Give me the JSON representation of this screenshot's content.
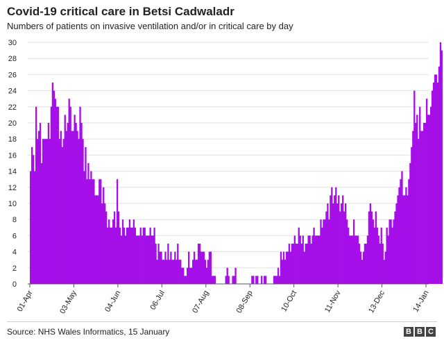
{
  "chart_data": {
    "type": "bar",
    "title": "Covid-19 critical care in Betsi Cadwaladr",
    "subtitle": "Numbers of patients on invasive ventilation and/or in critical care by day",
    "start_date": "2020-04-01",
    "end_date": "2021-01-14",
    "x_tick_labels": [
      "01-Apr",
      "03-May",
      "04-Jun",
      "06-Jul",
      "07-Aug",
      "08-Sep",
      "10-Oct",
      "11-Nov",
      "13-Dec",
      "14-Jan"
    ],
    "y_tick_labels": [
      "0",
      "2",
      "4",
      "6",
      "8",
      "10",
      "12",
      "14",
      "16",
      "18",
      "20",
      "22",
      "24",
      "26",
      "28",
      "30"
    ],
    "ylim": [
      0,
      30
    ],
    "bar_color": "#a50fe8",
    "grid": true,
    "values": [
      14,
      17,
      16,
      14,
      22,
      18,
      19,
      20,
      15,
      18,
      18,
      18,
      18,
      20,
      18,
      22,
      25,
      24,
      23,
      22,
      22,
      18,
      19,
      17,
      18,
      21,
      19,
      20,
      23,
      22,
      19,
      19,
      21,
      20,
      19,
      18,
      22,
      20,
      18,
      14,
      17,
      13,
      15,
      13,
      14,
      13,
      13,
      11,
      11,
      11,
      13,
      13,
      10,
      12,
      10,
      9,
      7,
      8,
      7,
      7,
      8,
      9,
      7,
      13,
      9,
      7,
      6,
      8,
      7,
      6,
      7,
      7,
      8,
      7,
      7,
      8,
      7,
      6,
      6,
      6,
      7,
      6,
      7,
      7,
      6,
      6,
      6,
      7,
      6,
      6,
      7,
      5,
      3,
      5,
      4,
      4,
      3,
      3,
      4,
      3,
      5,
      3,
      4,
      3,
      3,
      4,
      3,
      5,
      3,
      3,
      2,
      2,
      1,
      1,
      2,
      4,
      2,
      2,
      3,
      4,
      3,
      3,
      5,
      5,
      4,
      4,
      4,
      3,
      2,
      3,
      4,
      4,
      1,
      1,
      1,
      0,
      0,
      0,
      0,
      0,
      0,
      0,
      1,
      2,
      1,
      0,
      0,
      1,
      1,
      2,
      0,
      0,
      0,
      0,
      0,
      0,
      0,
      0,
      0,
      0,
      0,
      1,
      1,
      0,
      1,
      1,
      0,
      0,
      1,
      0,
      1,
      1,
      0,
      0,
      0,
      0,
      0,
      1,
      1,
      1,
      2,
      1,
      4,
      3,
      4,
      3,
      4,
      4,
      5,
      4,
      5,
      5,
      6,
      5,
      5,
      7,
      6,
      5,
      6,
      4,
      5,
      5,
      6,
      6,
      5,
      6,
      7,
      6,
      6,
      6,
      6,
      8,
      7,
      8,
      8,
      9,
      10,
      8,
      11,
      12,
      10,
      11,
      12,
      10,
      11,
      9,
      10,
      11,
      9,
      10,
      8,
      7,
      6,
      6,
      6,
      8,
      6,
      6,
      6,
      5,
      4,
      3,
      4,
      5,
      5,
      6,
      9,
      10,
      9,
      8,
      7,
      9,
      7,
      6,
      5,
      7,
      5,
      3,
      4,
      7,
      6,
      8,
      8,
      7,
      8,
      9,
      10,
      11,
      12,
      13,
      14,
      11,
      11,
      12,
      11,
      13,
      15,
      17,
      19,
      24,
      20,
      21,
      18,
      22,
      19,
      19,
      20,
      20,
      23,
      21,
      21,
      22,
      24,
      25,
      26,
      26,
      25,
      27,
      30,
      29
    ]
  },
  "source": "Source: NHS Wales Informatics, 15 January",
  "logo": [
    "B",
    "B",
    "C"
  ]
}
